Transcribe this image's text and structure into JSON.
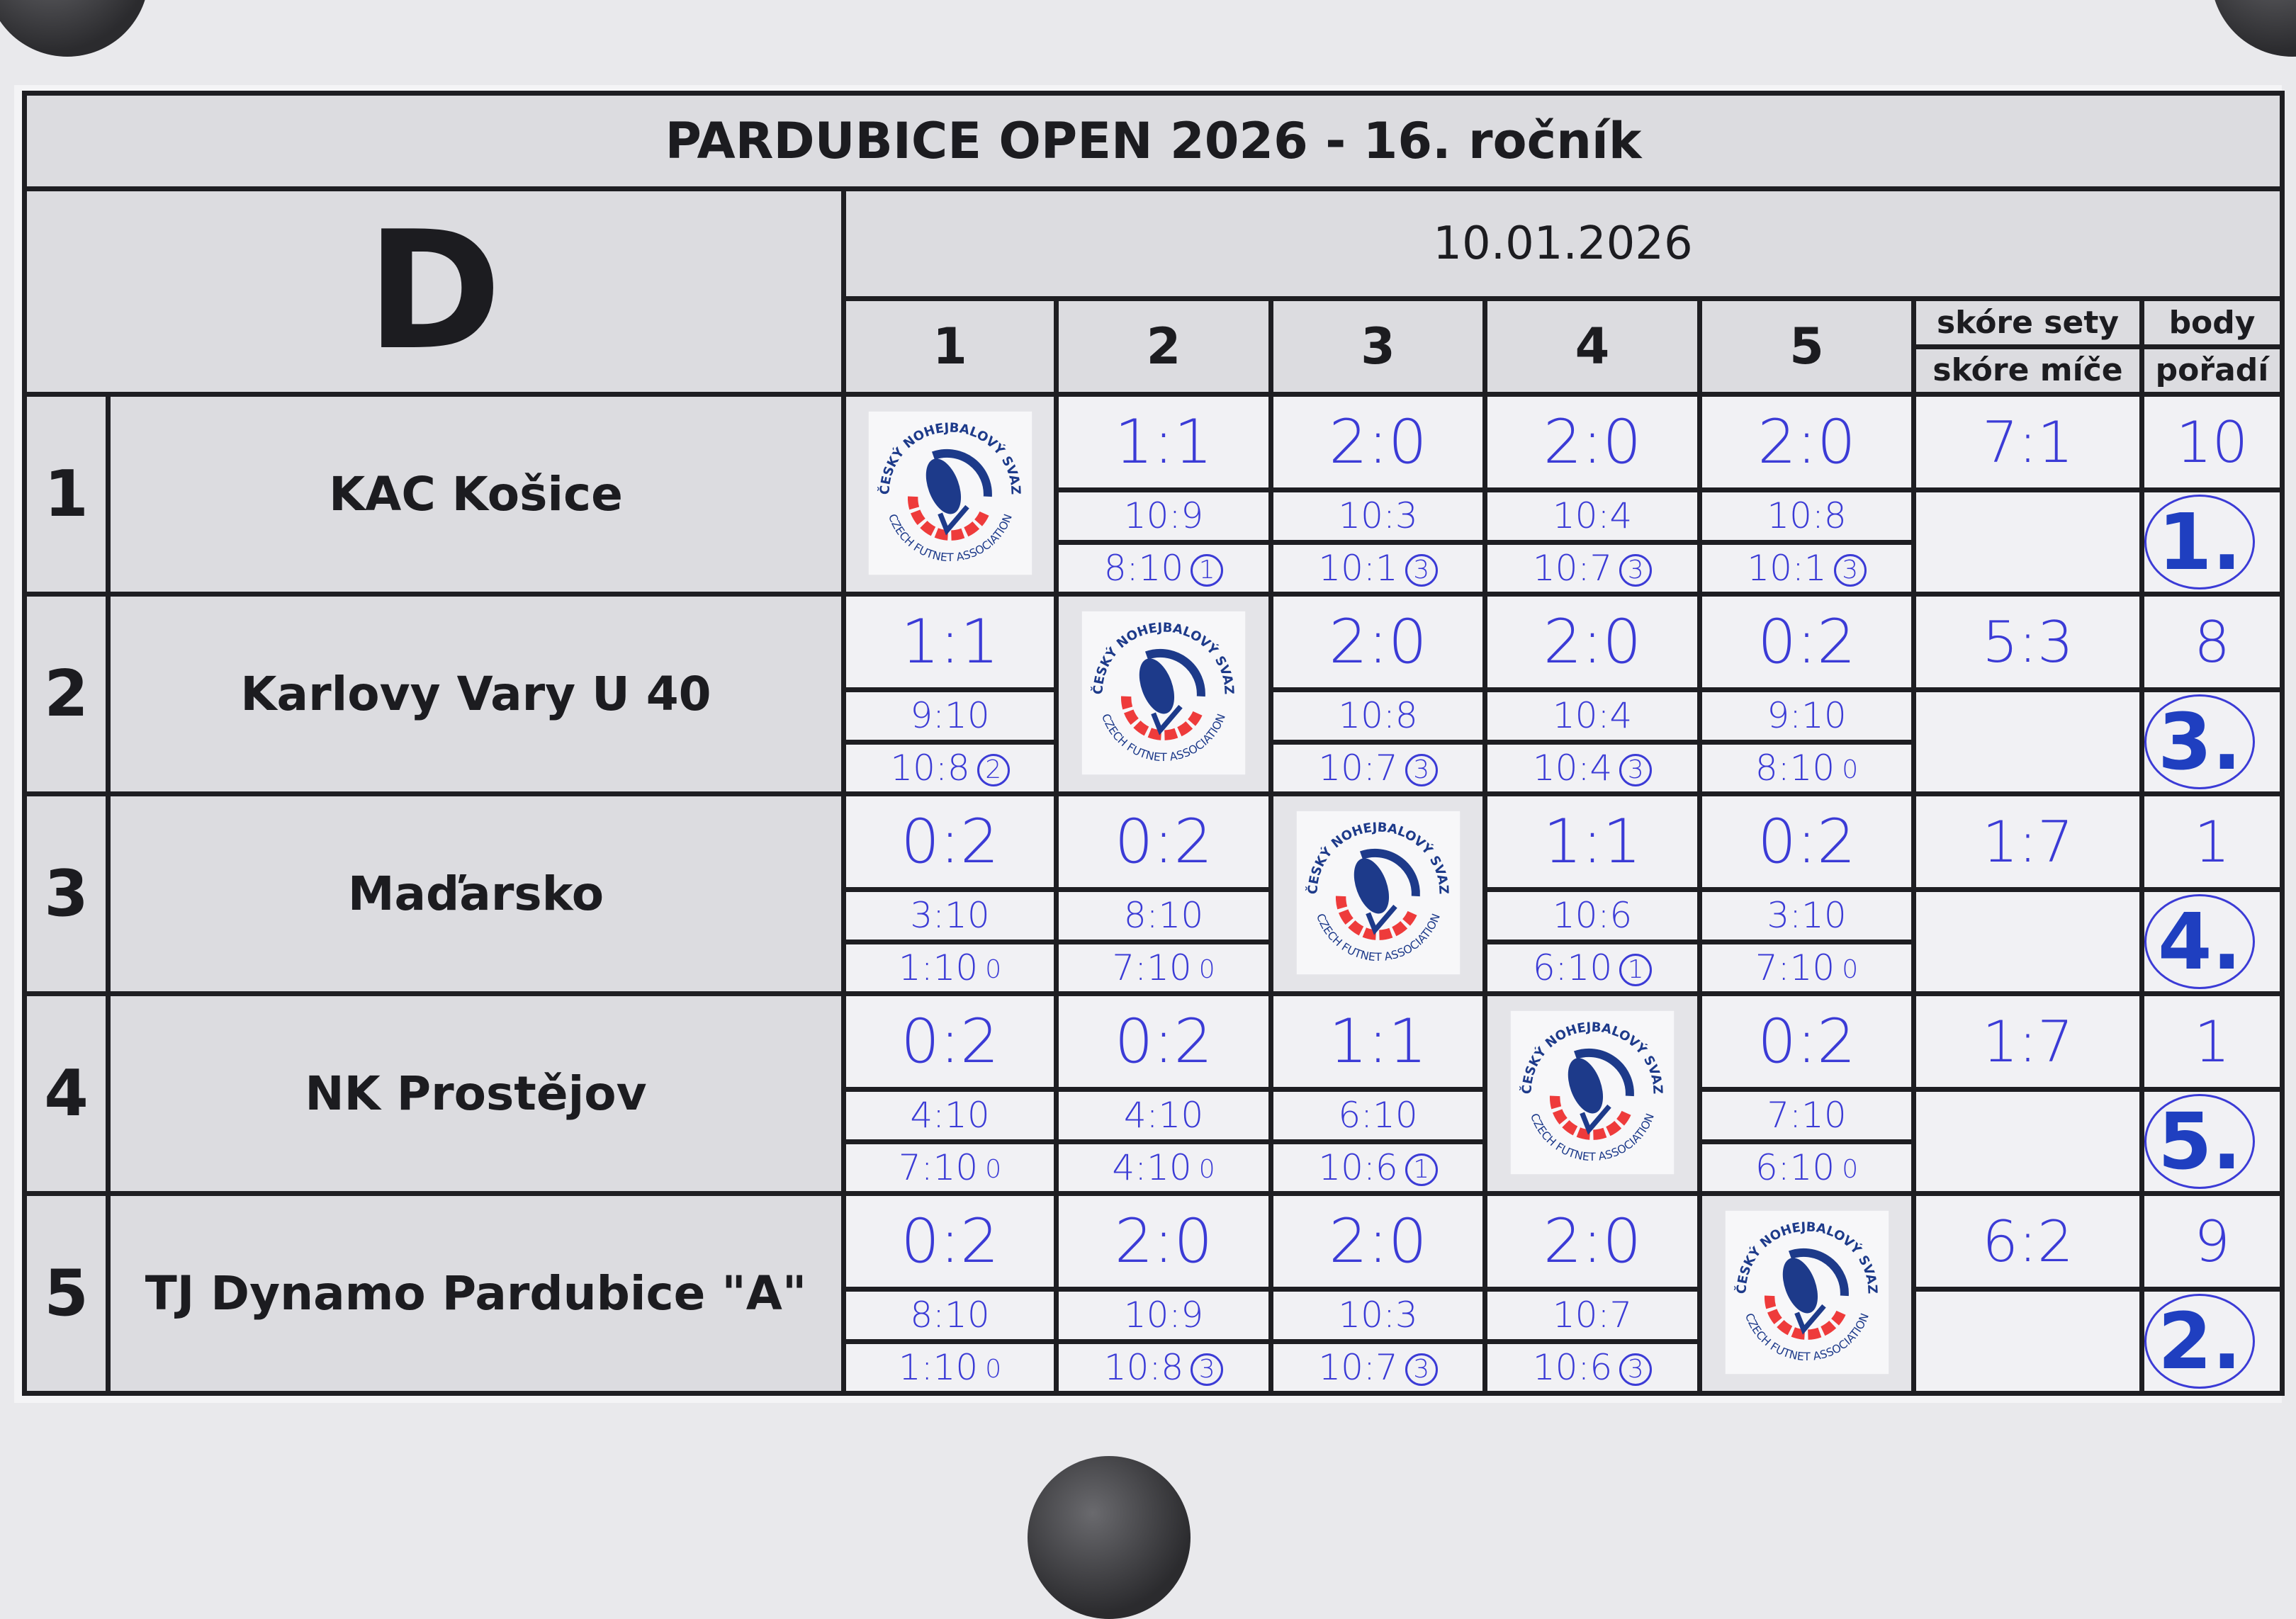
{
  "header": {
    "title": "PARDUBICE OPEN 2026 - 16. ročník",
    "group": "D",
    "date": "10.01.2026",
    "columns": [
      "1",
      "2",
      "3",
      "4",
      "5"
    ],
    "sets_label": "skóre sety",
    "balls_label": "skóre míče",
    "points_label": "body",
    "rank_label": "pořadí"
  },
  "logo": {
    "text_top": "ČESKÝ NOHEJBALOVÝ SVAZ",
    "text_bottom": "CZECH FUTNET ASSOCIATION",
    "colors": {
      "blue": "#1d3a8a",
      "red": "#ee3b3b"
    }
  },
  "ink_color": "#3b3bd6",
  "rows": [
    {
      "num": "1",
      "team": "KAC Košice",
      "sets_total": "7:1",
      "points": "10",
      "rank": "1.",
      "cells": [
        null,
        {
          "sets": "1:1",
          "g1": "10:9",
          "g2": "8:10",
          "mark": "1"
        },
        {
          "sets": "2:0",
          "g1": "10:3",
          "g2": "10:1",
          "mark": "3"
        },
        {
          "sets": "2:0",
          "g1": "10:4",
          "g2": "10:7",
          "mark": "3"
        },
        {
          "sets": "2:0",
          "g1": "10:8",
          "g2": "10:1",
          "mark": "3"
        }
      ]
    },
    {
      "num": "2",
      "team": "Karlovy Vary U 40",
      "sets_total": "5:3",
      "points": "8",
      "rank": "3.",
      "cells": [
        {
          "sets": "1:1",
          "g1": "9:10",
          "g2": "10:8",
          "mark": "2"
        },
        null,
        {
          "sets": "2:0",
          "g1": "10:8",
          "g2": "10:7",
          "mark": "3"
        },
        {
          "sets": "2:0",
          "g1": "10:4",
          "g2": "10:4",
          "mark": "3"
        },
        {
          "sets": "0:2",
          "g1": "9:10",
          "g2": "8:10",
          "mark": "0"
        }
      ]
    },
    {
      "num": "3",
      "team": "Maďarsko",
      "sets_total": "1:7",
      "points": "1",
      "rank": "4.",
      "cells": [
        {
          "sets": "0:2",
          "g1": "3:10",
          "g2": "1:10",
          "mark": "0"
        },
        {
          "sets": "0:2",
          "g1": "8:10",
          "g2": "7:10",
          "mark": "0"
        },
        null,
        {
          "sets": "1:1",
          "g1": "10:6",
          "g2": "6:10",
          "mark": "1"
        },
        {
          "sets": "0:2",
          "g1": "3:10",
          "g2": "7:10",
          "mark": "0"
        }
      ]
    },
    {
      "num": "4",
      "team": "NK Prostějov",
      "sets_total": "1:7",
      "points": "1",
      "rank": "5.",
      "cells": [
        {
          "sets": "0:2",
          "g1": "4:10",
          "g2": "7:10",
          "mark": "0"
        },
        {
          "sets": "0:2",
          "g1": "4:10",
          "g2": "4:10",
          "mark": "0"
        },
        {
          "sets": "1:1",
          "g1": "6:10",
          "g2": "10:6",
          "mark": "1"
        },
        null,
        {
          "sets": "0:2",
          "g1": "7:10",
          "g2": "6:10",
          "mark": "0"
        }
      ]
    },
    {
      "num": "5",
      "team": "TJ Dynamo Pardubice \"A\"",
      "sets_total": "6:2",
      "points": "9",
      "rank": "2.",
      "cells": [
        {
          "sets": "0:2",
          "g1": "8:10",
          "g2": "1:10",
          "mark": "0"
        },
        {
          "sets": "2:0",
          "g1": "10:9",
          "g2": "10:8",
          "mark": "3"
        },
        {
          "sets": "2:0",
          "g1": "10:3",
          "g2": "10:7",
          "mark": "3"
        },
        {
          "sets": "2:0",
          "g1": "10:7",
          "g2": "10:6",
          "mark": "3"
        },
        null
      ]
    }
  ]
}
